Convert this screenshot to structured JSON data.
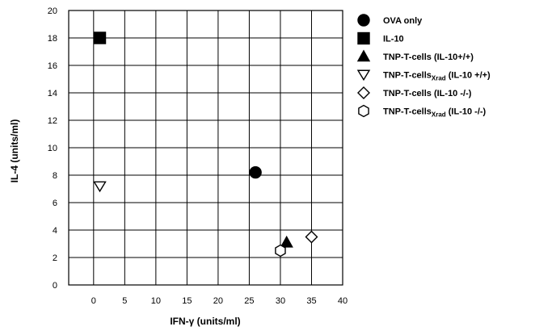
{
  "chart_data": {
    "type": "scatter",
    "title": "",
    "xlabel": "IFN-γ (units/ml)",
    "ylabel": "IL-4 (units/ml)",
    "xlim": [
      -4,
      40
    ],
    "ylim": [
      0,
      20
    ],
    "xticks": [
      0,
      5,
      10,
      15,
      20,
      25,
      30,
      35,
      40
    ],
    "yticks": [
      0,
      2,
      4,
      6,
      8,
      10,
      12,
      14,
      16,
      18,
      20
    ],
    "grid": true,
    "legend_position": "right",
    "series": [
      {
        "name": "OVA only",
        "marker": "circle-filled",
        "points": [
          {
            "x": 26,
            "y": 8.2
          }
        ]
      },
      {
        "name": "IL-10",
        "marker": "square-filled",
        "points": [
          {
            "x": 1,
            "y": 18
          }
        ]
      },
      {
        "name": "TNP-T-cells (IL-10+/+)",
        "name_parts": [
          "TNP-T-cells",
          "",
          " (IL-10+/+)"
        ],
        "marker": "triangle-filled",
        "points": [
          {
            "x": 31,
            "y": 3.1
          }
        ]
      },
      {
        "name": "TNP-T-cellsXrad (IL-10 +/+)",
        "name_parts": [
          "TNP-T-cells",
          "Xrad",
          " (IL-10 +/+)"
        ],
        "marker": "triangle-down-open",
        "points": [
          {
            "x": 1,
            "y": 7.2
          }
        ]
      },
      {
        "name": "TNP-T-cells (IL-10 -/-)",
        "name_parts": [
          "TNP-T-cells",
          "",
          " (IL-10 -/-)"
        ],
        "marker": "diamond-open",
        "points": [
          {
            "x": 35,
            "y": 3.5
          }
        ]
      },
      {
        "name": "TNP-T-cellsXrad (IL-10 -/-)",
        "name_parts": [
          "TNP-T-cells",
          "Xrad",
          " (IL-10 -/-)"
        ],
        "marker": "hexagon-open",
        "points": [
          {
            "x": 30,
            "y": 2.5
          }
        ]
      }
    ]
  }
}
